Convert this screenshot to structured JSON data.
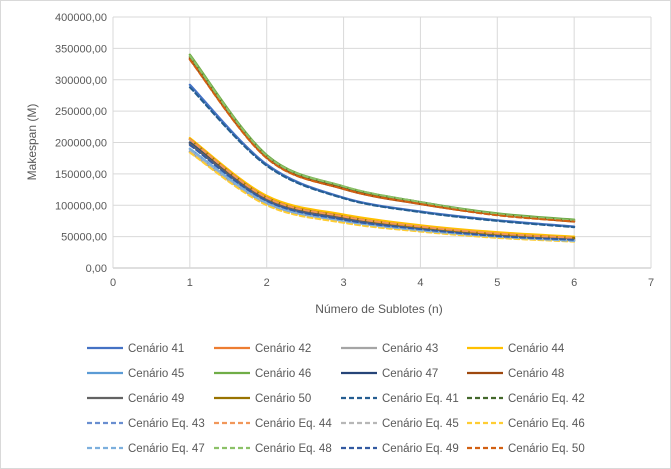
{
  "chart_data": {
    "type": "line",
    "title": "",
    "xlabel": "Número de Sublotes (n)",
    "ylabel": "Makespan (M)",
    "xlim": [
      0,
      7
    ],
    "ylim": [
      0,
      400000
    ],
    "x_ticks": [
      "0",
      "1",
      "2",
      "3",
      "4",
      "5",
      "6",
      "7"
    ],
    "y_ticks": [
      "0,00",
      "50000,00",
      "100000,00",
      "150000,00",
      "200000,00",
      "250000,00",
      "300000,00",
      "350000,00",
      "400000,00"
    ],
    "grid": true,
    "legend_position": "bottom",
    "x": [
      1,
      2,
      3,
      4,
      5,
      6
    ],
    "series": [
      {
        "name": "Cenário 41",
        "color": "#4472c4",
        "dash": false,
        "values": [
          292000,
          165000,
          112000,
          90000,
          76000,
          66000
        ]
      },
      {
        "name": "Cenário 42",
        "color": "#ed7d31",
        "dash": false,
        "values": [
          335000,
          178000,
          128000,
          104000,
          86000,
          76000
        ]
      },
      {
        "name": "Cenário 43",
        "color": "#a5a5a5",
        "dash": false,
        "values": [
          185000,
          103000,
          75000,
          60000,
          50000,
          44000
        ]
      },
      {
        "name": "Cenário 44",
        "color": "#ffc000",
        "dash": false,
        "values": [
          207000,
          115000,
          85000,
          68000,
          57000,
          50000
        ]
      },
      {
        "name": "Cenário 45",
        "color": "#5b9bd5",
        "dash": false,
        "values": [
          190000,
          105000,
          76000,
          61000,
          50000,
          44000
        ]
      },
      {
        "name": "Cenário 46",
        "color": "#70ad47",
        "dash": false,
        "values": [
          340000,
          180000,
          130000,
          105000,
          87000,
          77000
        ]
      },
      {
        "name": "Cenário 47",
        "color": "#264478",
        "dash": false,
        "values": [
          200000,
          110000,
          80000,
          64000,
          53000,
          47000
        ]
      },
      {
        "name": "Cenário 48",
        "color": "#9e480e",
        "dash": false,
        "values": [
          333000,
          176000,
          126000,
          102000,
          85000,
          74000
        ]
      },
      {
        "name": "Cenário 49",
        "color": "#636363",
        "dash": false,
        "values": [
          198000,
          108000,
          78000,
          62000,
          51000,
          45000
        ]
      },
      {
        "name": "Cenário 50",
        "color": "#997300",
        "dash": false,
        "values": [
          205000,
          112000,
          82000,
          65000,
          54000,
          48000
        ]
      },
      {
        "name": "Cenário Eq. 41",
        "color": "#255e91",
        "dash": true,
        "values": [
          288000,
          163000,
          111000,
          89000,
          75000,
          65000
        ]
      },
      {
        "name": "Cenário Eq. 42",
        "color": "#43682b",
        "dash": true,
        "values": [
          337000,
          179000,
          129000,
          105000,
          86000,
          76000
        ]
      },
      {
        "name": "Cenário Eq. 43",
        "color": "#698ed0",
        "dash": true,
        "values": [
          186000,
          102000,
          74000,
          59000,
          49000,
          43000
        ]
      },
      {
        "name": "Cenário Eq. 44",
        "color": "#f1975a",
        "dash": true,
        "values": [
          205000,
          112000,
          82000,
          66000,
          55000,
          48000
        ]
      },
      {
        "name": "Cenário Eq. 45",
        "color": "#b7b7b7",
        "dash": true,
        "values": [
          188000,
          104000,
          75000,
          60000,
          50000,
          44000
        ]
      },
      {
        "name": "Cenário Eq. 46",
        "color": "#ffcd33",
        "dash": true,
        "values": [
          184000,
          100000,
          72000,
          58000,
          48000,
          42000
        ]
      },
      {
        "name": "Cenário Eq. 47",
        "color": "#7cafdd",
        "dash": true,
        "values": [
          190000,
          104000,
          75000,
          60000,
          50000,
          43000
        ]
      },
      {
        "name": "Cenário Eq. 48",
        "color": "#8cc168",
        "dash": true,
        "values": [
          338000,
          179000,
          130000,
          105000,
          86000,
          76000
        ]
      },
      {
        "name": "Cenário Eq. 49",
        "color": "#335aa1",
        "dash": true,
        "values": [
          196000,
          107000,
          77000,
          62000,
          51000,
          45000
        ]
      },
      {
        "name": "Cenário Eq. 50",
        "color": "#d26012",
        "dash": true,
        "values": [
          332000,
          175000,
          126000,
          102000,
          84000,
          74000
        ]
      }
    ]
  }
}
